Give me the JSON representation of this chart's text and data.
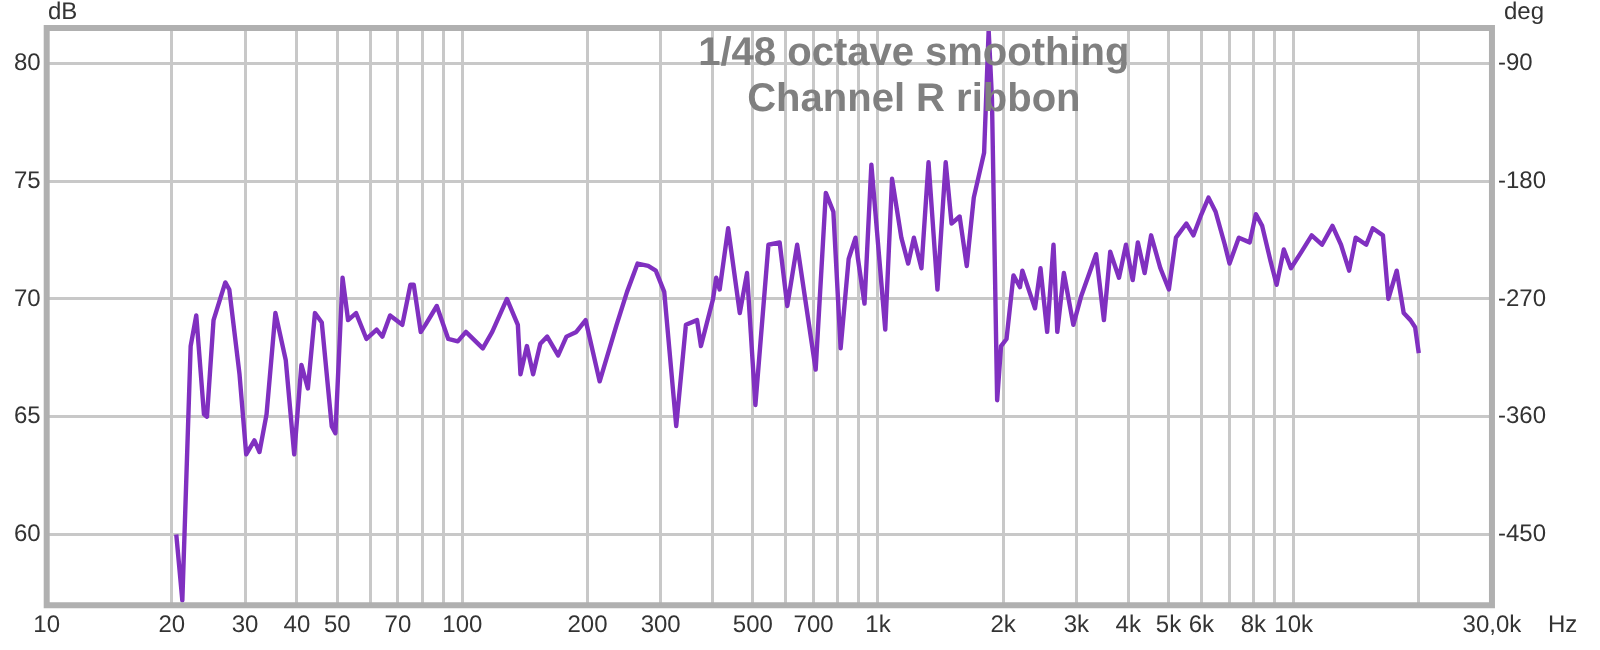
{
  "chart_data": {
    "type": "line",
    "title": "1/48 octave smoothing",
    "subtitle": "Channel R ribbon",
    "xlabel": "Hz",
    "ylabel": "dB",
    "y2label": "deg",
    "log": "x",
    "grid": true,
    "legend": false,
    "marker": "none",
    "line_style": "solid",
    "xlim": [
      10,
      30000
    ],
    "ylim": [
      57,
      81.5
    ],
    "y2lim": [
      -504,
      -63
    ],
    "xticks": [
      10,
      20,
      30,
      40,
      50,
      {
        "value": 60,
        "label": null
      },
      70,
      {
        "value": 80,
        "label": null
      },
      {
        "value": 90,
        "label": null
      },
      100,
      200,
      300,
      {
        "value": 400,
        "label": null
      },
      500,
      {
        "value": 600,
        "label": null
      },
      700,
      {
        "value": 800,
        "label": null
      },
      {
        "value": 900,
        "label": null
      },
      {
        "value": 1000,
        "label": "1k"
      },
      {
        "value": 2000,
        "label": "2k"
      },
      {
        "value": 3000,
        "label": "3k"
      },
      {
        "value": 4000,
        "label": "4k"
      },
      {
        "value": 5000,
        "label": "5k"
      },
      {
        "value": 6000,
        "label": "6k"
      },
      {
        "value": 7000,
        "label": null
      },
      {
        "value": 8000,
        "label": "8k"
      },
      {
        "value": 9000,
        "label": null
      },
      {
        "value": 10000,
        "label": "10k"
      },
      {
        "value": 20000,
        "label": null
      },
      {
        "value": 30000,
        "label": "30,0k"
      }
    ],
    "yticks": [
      60,
      65,
      70,
      75,
      80
    ],
    "y2ticks": [
      -450,
      -360,
      -270,
      -180,
      -90
    ],
    "series": [
      {
        "color": "#8030c0",
        "x": [
          20.5,
          21.2,
          22.2,
          22.9,
          23.9,
          24.3,
          25.2,
          26.9,
          27.5,
          29.1,
          30.2,
          31.6,
          32.5,
          33.8,
          35.5,
          37.6,
          39.4,
          41.0,
          42.5,
          44.2,
          45.9,
          48.5,
          49.5,
          51.5,
          53.1,
          55.5,
          58.8,
          62.2,
          64.2,
          67.0,
          71.7,
          75.0,
          76.4,
          79.4,
          81.5,
          86.8,
          92.5,
          97.5,
          102,
          112,
          118,
          128,
          136,
          138,
          143,
          148,
          154,
          160,
          170,
          178,
          188,
          198,
          214,
          235,
          249,
          264,
          280,
          292,
          306,
          327,
          345,
          367,
          375,
          401,
          408,
          416,
          436,
          465,
          484,
          507,
          545,
          580,
          605,
          639,
          708,
          749,
          781,
          813,
          850,
          883,
          895,
          928,
          964,
          1041,
          1081,
          1138,
          1182,
          1220,
          1272,
          1323,
          1390,
          1455,
          1503,
          1572,
          1635,
          1700,
          1800,
          1846,
          1880,
          1935,
          1977,
          2038,
          2118,
          2196,
          2225,
          2386,
          2460,
          2553,
          2644,
          2700,
          2800,
          2951,
          3080,
          3348,
          3496,
          3620,
          3800,
          3950,
          4100,
          4219,
          4380,
          4540,
          4780,
          5010,
          5210,
          5520,
          5740,
          5970,
          6240,
          6490,
          6830,
          7010,
          7380,
          7840,
          8110,
          8400,
          8800,
          9100,
          9470,
          9850,
          10440,
          11050,
          11700,
          12400,
          13000,
          13600,
          14100,
          14950,
          15500,
          16400,
          16900,
          17700,
          18400,
          19100,
          19600,
          20000
        ],
        "values": [
          60,
          57.2,
          68.0,
          69.3,
          65.1,
          65.0,
          69.1,
          70.7,
          70.4,
          66.8,
          63.4,
          64.0,
          63.5,
          65.1,
          69.4,
          67.4,
          63.4,
          67.2,
          66.2,
          69.4,
          69.0,
          64.6,
          64.3,
          70.9,
          69.1,
          69.4,
          68.3,
          68.7,
          68.4,
          69.3,
          68.9,
          70.6,
          70.6,
          68.6,
          68.9,
          69.7,
          68.3,
          68.2,
          68.6,
          67.9,
          68.6,
          70.0,
          68.9,
          66.8,
          68.0,
          66.8,
          68.1,
          68.4,
          67.6,
          68.4,
          68.6,
          69.1,
          66.5,
          68.9,
          70.3,
          71.5,
          71.4,
          71.2,
          70.3,
          64.6,
          68.9,
          69.1,
          68.0,
          70.0,
          70.9,
          70.4,
          73.0,
          69.4,
          71.1,
          65.5,
          72.3,
          72.4,
          69.7,
          72.3,
          67.0,
          74.5,
          73.7,
          67.9,
          71.7,
          72.6,
          71.7,
          69.8,
          75.7,
          68.7,
          75.1,
          72.6,
          71.5,
          72.6,
          71.3,
          75.8,
          70.4,
          75.8,
          73.2,
          73.5,
          71.4,
          74.3,
          76.2,
          81.4,
          78.5,
          65.7,
          68.0,
          68.3,
          71.0,
          70.5,
          71.2,
          69.6,
          71.3,
          68.6,
          72.3,
          68.6,
          71.1,
          68.9,
          70.1,
          71.9,
          69.1,
          72.0,
          70.9,
          72.3,
          70.8,
          72.4,
          71.1,
          72.7,
          71.3,
          70.4,
          72.6,
          73.2,
          72.7,
          73.5,
          74.3,
          73.7,
          72.3,
          71.5,
          72.6,
          72.4,
          73.6,
          73.1,
          71.6,
          70.6,
          72.1,
          71.3,
          72.0,
          72.7,
          72.3,
          73.1,
          72.3,
          71.2,
          72.6,
          72.3,
          73.0,
          72.7,
          70.0,
          71.2,
          69.4,
          69.1,
          68.8,
          67.7
        ]
      }
    ]
  }
}
